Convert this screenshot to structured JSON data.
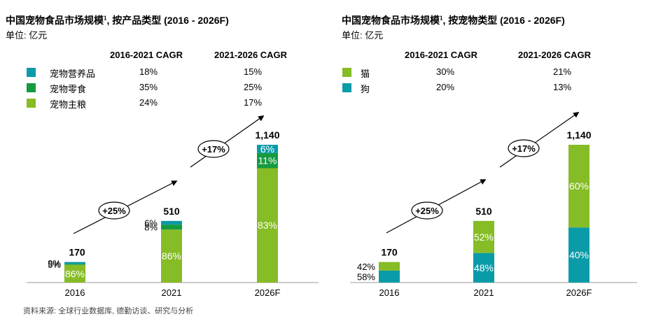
{
  "chart_data": [
    {
      "type": "bar",
      "stacked": true,
      "title": "中国宠物食品市场规模",
      "title_sup": "1",
      "title_suffix": ", 按产品类型 (2016 - 2026F)",
      "unit": "单位: 亿元",
      "cagr_headers": [
        "2016-2021 CAGR",
        "2021-2026 CAGR"
      ],
      "legend": [
        {
          "name": "宠物营养品",
          "color": "#0a9ba8",
          "cagr": [
            "18%",
            "15%"
          ]
        },
        {
          "name": "宠物零食",
          "color": "#159a3e",
          "cagr": [
            "35%",
            "25%"
          ]
        },
        {
          "name": "宠物主粮",
          "color": "#86bc25",
          "cagr": [
            "24%",
            "17%"
          ]
        }
      ],
      "categories": [
        "2016",
        "2021",
        "2026F"
      ],
      "totals": [
        170,
        510,
        1140
      ],
      "total_labels": [
        "170",
        "510",
        "1,140"
      ],
      "series": [
        {
          "name": "宠物主粮",
          "color": "#86bc25",
          "share": [
            0.86,
            0.86,
            0.83
          ],
          "labels": [
            "86%",
            "86%",
            "83%"
          ]
        },
        {
          "name": "宠物零食",
          "color": "#159a3e",
          "share": [
            0.05,
            0.08,
            0.11
          ],
          "labels": [
            "5%",
            "8%",
            "11%"
          ]
        },
        {
          "name": "宠物营养品",
          "color": "#0a9ba8",
          "share": [
            0.09,
            0.06,
            0.06
          ],
          "labels": [
            "9%",
            "6%",
            "6%"
          ]
        }
      ],
      "growth_labels": [
        "+25%",
        "+17%"
      ],
      "ylim": [
        0,
        1200
      ],
      "grid": false
    },
    {
      "type": "bar",
      "stacked": true,
      "title": "中国宠物食品市场规模",
      "title_sup": "1",
      "title_suffix": ", 按宠物类型 (2016 - 2026F)",
      "unit": "单位: 亿元",
      "cagr_headers": [
        "2016-2021 CAGR",
        "2021-2026 CAGR"
      ],
      "legend": [
        {
          "name": "猫",
          "color": "#86bc25",
          "cagr": [
            "30%",
            "21%"
          ]
        },
        {
          "name": "狗",
          "color": "#0a9ba8",
          "cagr": [
            "20%",
            "13%"
          ]
        }
      ],
      "categories": [
        "2016",
        "2021",
        "2026F"
      ],
      "totals": [
        170,
        510,
        1140
      ],
      "total_labels": [
        "170",
        "510",
        "1,140"
      ],
      "series": [
        {
          "name": "狗",
          "color": "#0a9ba8",
          "share": [
            0.58,
            0.48,
            0.4
          ],
          "labels": [
            "58%",
            "48%",
            "40%"
          ]
        },
        {
          "name": "猫",
          "color": "#86bc25",
          "share": [
            0.42,
            0.52,
            0.6
          ],
          "labels": [
            "42%",
            "52%",
            "60%"
          ]
        }
      ],
      "growth_labels": [
        "+25%",
        "+17%"
      ],
      "ylim": [
        0,
        1200
      ],
      "grid": false
    }
  ],
  "footnote": "资料来源: 全球行业数据库, 德勤访谈、研究与分析"
}
